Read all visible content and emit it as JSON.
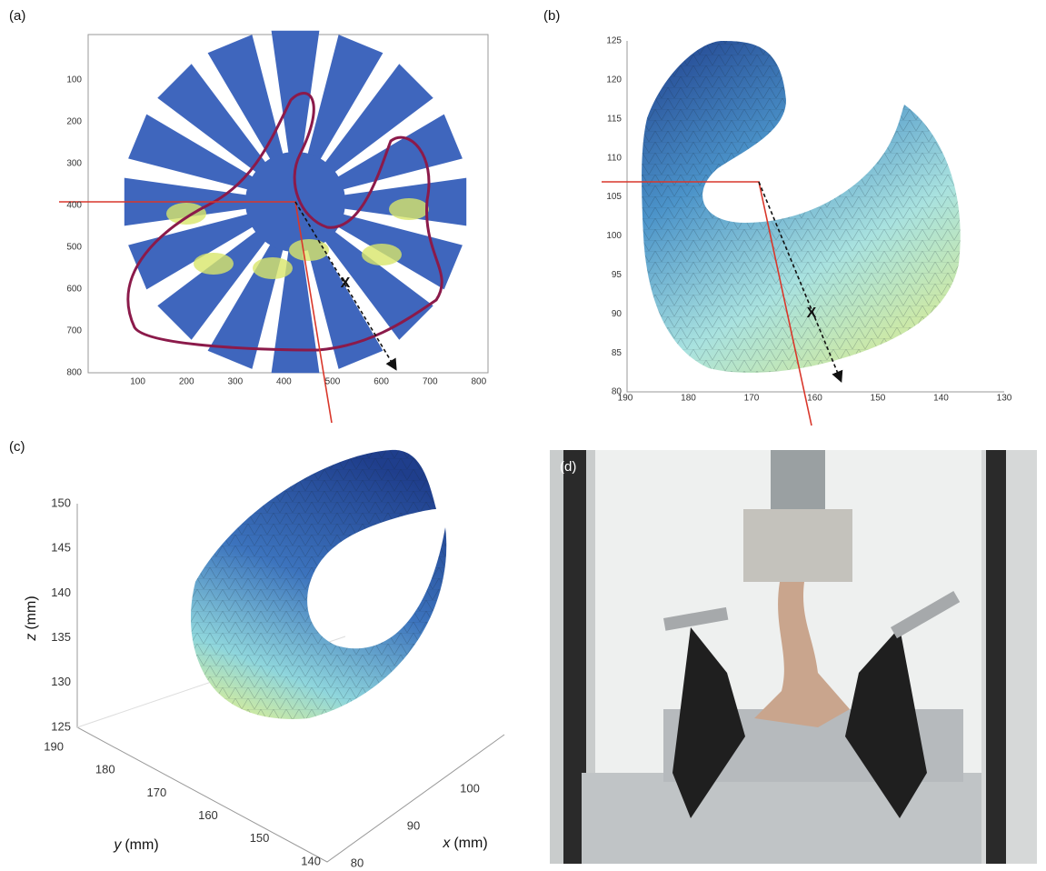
{
  "panels": [
    {
      "label": "(a)",
      "xticks": [
        100,
        200,
        300,
        400,
        500,
        600,
        700,
        800
      ],
      "yticks": [
        100,
        200,
        300,
        400,
        500,
        600,
        700,
        800
      ],
      "marker": "X"
    },
    {
      "label": "(b)",
      "xticks": [
        190,
        180,
        170,
        160,
        150,
        140,
        130
      ],
      "yticks": [
        125,
        120,
        115,
        110,
        105,
        100,
        95,
        90,
        85,
        80
      ],
      "marker": "X"
    },
    {
      "label": "(c)",
      "z_axis": {
        "var": "z",
        "unit": "(mm)"
      },
      "zticks": [
        150,
        145,
        140,
        135,
        130,
        125
      ],
      "y_axis": {
        "var": "y",
        "unit": "(mm)"
      },
      "yticks": [
        190,
        180,
        170,
        160,
        150,
        140
      ],
      "x_axis": {
        "var": "x",
        "unit": "(mm)"
      },
      "xticks": [
        80,
        90,
        100
      ]
    },
    {
      "label": "(d)"
    }
  ]
}
